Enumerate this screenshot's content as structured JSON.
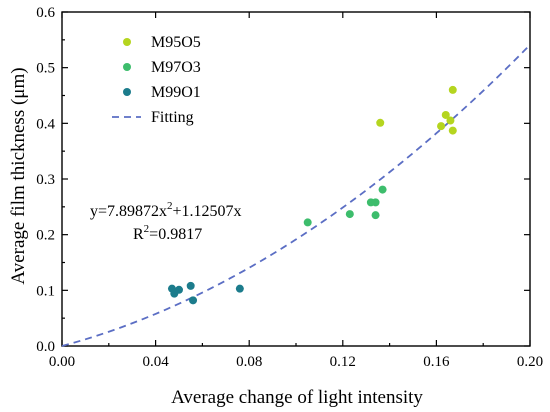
{
  "chart_data": {
    "type": "scatter",
    "xlabel": "Average change of light  intensity",
    "ylabel": "Average film thickness (μm)",
    "xlim": [
      0.0,
      0.2
    ],
    "ylim": [
      0.0,
      0.6
    ],
    "xticks": [
      "0.00",
      "0.04",
      "0.08",
      "0.12",
      "0.16",
      "0.20"
    ],
    "yticks": [
      "0.0",
      "0.1",
      "0.2",
      "0.3",
      "0.4",
      "0.5",
      "0.6"
    ],
    "grid": false,
    "legend_position": "top-left",
    "series": [
      {
        "name": "M95O5",
        "color": "#b5d51f",
        "points": [
          [
            0.162,
            0.395
          ],
          [
            0.164,
            0.415
          ],
          [
            0.166,
            0.405
          ],
          [
            0.167,
            0.46
          ],
          [
            0.167,
            0.387
          ],
          [
            0.136,
            0.401
          ]
        ]
      },
      {
        "name": "M97O3",
        "color": "#3dbd6c",
        "points": [
          [
            0.105,
            0.222
          ],
          [
            0.123,
            0.237
          ],
          [
            0.132,
            0.258
          ],
          [
            0.134,
            0.258
          ],
          [
            0.134,
            0.235
          ],
          [
            0.137,
            0.281
          ]
        ]
      },
      {
        "name": "M99O1",
        "color": "#1c7c8c",
        "points": [
          [
            0.047,
            0.103
          ],
          [
            0.048,
            0.094
          ],
          [
            0.05,
            0.101
          ],
          [
            0.055,
            0.108
          ],
          [
            0.056,
            0.082
          ],
          [
            0.076,
            0.103
          ]
        ]
      }
    ],
    "fit": {
      "name": "Fitting",
      "color": "#5b6ec4",
      "style": "dashed",
      "a": 7.89872,
      "b": 1.12507
    },
    "annotation": {
      "coefficient_label": "y=7.89872x",
      "sup": "2",
      "rest": "+1.12507x",
      "r2_label": "R",
      "r2_sup": "2",
      "r2_value": "=0.9817"
    }
  }
}
